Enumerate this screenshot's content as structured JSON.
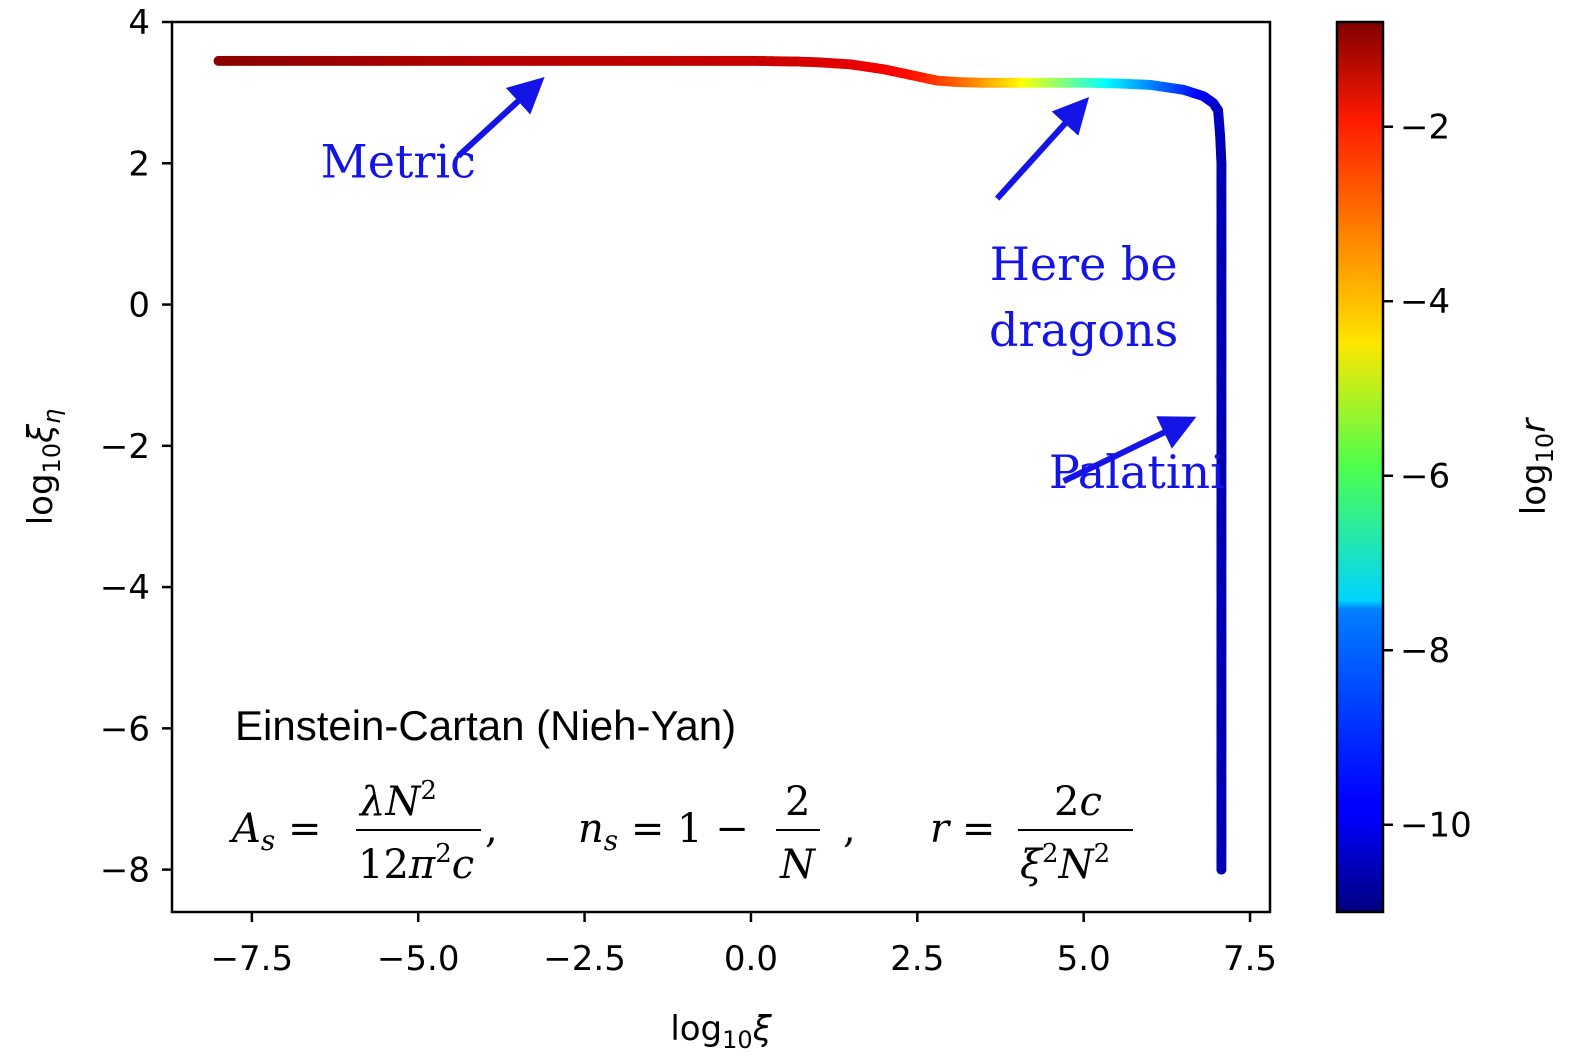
{
  "chart_data": {
    "type": "scatter",
    "xlabel": "log10ξ",
    "ylabel": "log10ξη",
    "colorbar_label": "log10r",
    "xlim": [
      -8.7,
      7.8
    ],
    "ylim": [
      -8.6,
      4.0
    ],
    "x_ticks": [
      -7.5,
      -5.0,
      -2.5,
      0.0,
      2.5,
      5.0,
      7.5
    ],
    "x_tick_labels": [
      "−7.5",
      "−5.0",
      "−2.5",
      "0.0",
      "2.5",
      "5.0",
      "7.5"
    ],
    "y_ticks": [
      4,
      2,
      0,
      -2,
      -4,
      -6,
      -8
    ],
    "y_tick_labels": [
      "4",
      "2",
      "0",
      "−2",
      "−4",
      "−6",
      "−8"
    ],
    "colorbar_range": [
      -11,
      -0.8
    ],
    "colorbar_ticks": [
      -2,
      -4,
      -6,
      -8,
      -10
    ],
    "colorbar_tick_labels": [
      "−2",
      "−4",
      "−6",
      "−8",
      "−10"
    ],
    "series": [
      {
        "points": [
          {
            "x": -8.0,
            "y": 3.45,
            "c": -0.9
          },
          {
            "x": -6.0,
            "y": 3.45,
            "c": -1.1
          },
          {
            "x": -4.0,
            "y": 3.45,
            "c": -1.3
          },
          {
            "x": -2.0,
            "y": 3.45,
            "c": -1.4
          },
          {
            "x": 0.0,
            "y": 3.45,
            "c": -1.5
          },
          {
            "x": 0.7,
            "y": 3.44,
            "c": -1.6
          },
          {
            "x": 1.0,
            "y": 3.43,
            "c": -1.7
          },
          {
            "x": 1.5,
            "y": 3.4,
            "c": -1.8
          },
          {
            "x": 2.0,
            "y": 3.33,
            "c": -2.0
          },
          {
            "x": 2.5,
            "y": 3.23,
            "c": -2.3
          },
          {
            "x": 2.8,
            "y": 3.17,
            "c": -2.6
          },
          {
            "x": 3.1,
            "y": 3.15,
            "c": -3.0
          },
          {
            "x": 3.5,
            "y": 3.14,
            "c": -3.6
          },
          {
            "x": 4.0,
            "y": 3.14,
            "c": -4.4
          },
          {
            "x": 4.5,
            "y": 3.14,
            "c": -5.4
          },
          {
            "x": 5.0,
            "y": 3.14,
            "c": -6.4
          },
          {
            "x": 5.5,
            "y": 3.13,
            "c": -7.4
          },
          {
            "x": 6.0,
            "y": 3.11,
            "c": -8.3
          },
          {
            "x": 6.5,
            "y": 3.04,
            "c": -9.2
          },
          {
            "x": 6.8,
            "y": 2.95,
            "c": -9.8
          },
          {
            "x": 6.95,
            "y": 2.85,
            "c": -10.1
          },
          {
            "x": 7.02,
            "y": 2.75,
            "c": -10.3
          },
          {
            "x": 7.05,
            "y": 2.4,
            "c": -10.4
          },
          {
            "x": 7.07,
            "y": 2.0,
            "c": -10.5
          },
          {
            "x": 7.07,
            "y": 0.0,
            "c": -10.5
          },
          {
            "x": 7.07,
            "y": -2.0,
            "c": -10.5
          },
          {
            "x": 7.07,
            "y": -4.0,
            "c": -10.5
          },
          {
            "x": 7.07,
            "y": -6.0,
            "c": -10.5
          },
          {
            "x": 7.07,
            "y": -8.0,
            "c": -10.5
          }
        ]
      }
    ],
    "annotations": [
      {
        "id": "metric",
        "text": "Metric",
        "x": -5.3,
        "y": 1.8,
        "arrow_from": [
          -4.4,
          2.1
        ],
        "arrow_to": [
          -3.3,
          3.05
        ]
      },
      {
        "id": "dragons",
        "lines": [
          "Here be",
          "dragons"
        ],
        "x": 5.0,
        "y": 0.35,
        "arrow_from": [
          3.7,
          1.5
        ],
        "arrow_to": [
          4.9,
          2.75
        ]
      },
      {
        "id": "palatini",
        "text": "Palatini",
        "x": 5.8,
        "y": -2.6,
        "arrow_from": [
          4.7,
          -2.5
        ],
        "arrow_to": [
          6.45,
          -1.7
        ]
      }
    ],
    "model_title": "Einstein-Cartan (Nieh-Yan)"
  }
}
